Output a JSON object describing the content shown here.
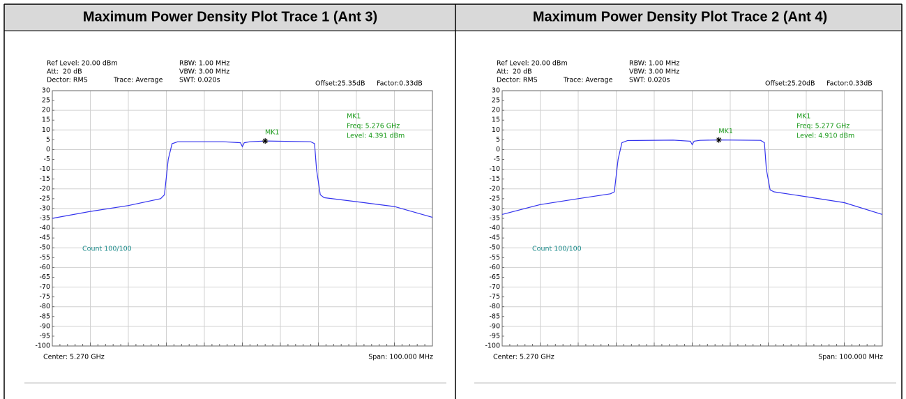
{
  "chart_data": [
    {
      "type": "line",
      "title": "Maximum Power Density Plot Trace 1 (Ant 3)",
      "ref_level": "Ref Level: 20.00 dBm",
      "att": "Att:",
      "att_value": "20 dB",
      "detector": "Dector: RMS",
      "rbw": "RBW: 1.00 MHz",
      "vbw": "VBW: 3.00 MHz",
      "trace": "Trace: Average",
      "swt": "SWT: 0.020s",
      "offset": "Offset:25.35dB",
      "factor": "Factor:0.33dB",
      "marker_info": [
        "MK1",
        "Freq: 5.276 GHz",
        "Level: 4.391 dBm"
      ],
      "count": "Count 100/100",
      "center": "Center: 5.270 GHz",
      "span": "Span: 100.000 MHz",
      "xlim": [
        5.22,
        5.32
      ],
      "ylim": [
        -100,
        30
      ],
      "yticks": [
        -100,
        -95,
        -90,
        -85,
        -80,
        -75,
        -70,
        -65,
        -60,
        -55,
        -50,
        -45,
        -40,
        -35,
        -30,
        -25,
        -20,
        -15,
        -10,
        -5,
        0,
        5,
        10,
        15,
        20,
        25,
        30
      ],
      "grid": true,
      "x": [
        5.22,
        5.23,
        5.24,
        5.2485,
        5.2495,
        5.2505,
        5.2515,
        5.253,
        5.265,
        5.2695,
        5.27,
        5.2705,
        5.272,
        5.276,
        5.288,
        5.289,
        5.2895,
        5.2905,
        5.2915,
        5.3,
        5.31,
        5.32
      ],
      "series": [
        {
          "color": "#3333ee",
          "values": [
            -35,
            -31.5,
            -28.5,
            -25,
            -23,
            -5,
            3,
            4,
            4,
            3.5,
            1.5,
            3.5,
            4,
            4.391,
            4,
            3,
            -10,
            -23,
            -24.5,
            -26.5,
            -29,
            -34.5
          ]
        }
      ],
      "marker": {
        "label": "MK1",
        "x": 5.276,
        "y": 4.391
      }
    },
    {
      "type": "line",
      "title": "Maximum Power Density Plot Trace 2 (Ant 4)",
      "ref_level": "Ref Level: 20.00 dBm",
      "att": "Att:",
      "att_value": "20 dB",
      "detector": "Dector: RMS",
      "rbw": "RBW: 1.00 MHz",
      "vbw": "VBW: 3.00 MHz",
      "trace": "Trace: Average",
      "swt": "SWT: 0.020s",
      "offset": "Offset:25.20dB",
      "factor": "Factor:0.33dB",
      "marker_info": [
        "MK1",
        "Freq: 5.277 GHz",
        "Level: 4.910 dBm"
      ],
      "count": "Count 100/100",
      "center": "Center: 5.270 GHz",
      "span": "Span: 100.000 MHz",
      "xlim": [
        5.22,
        5.32
      ],
      "ylim": [
        -100,
        30
      ],
      "yticks": [
        -100,
        -95,
        -90,
        -85,
        -80,
        -75,
        -70,
        -65,
        -60,
        -55,
        -50,
        -45,
        -40,
        -35,
        -30,
        -25,
        -20,
        -15,
        -10,
        -5,
        0,
        5,
        10,
        15,
        20,
        25,
        30
      ],
      "grid": true,
      "x": [
        5.22,
        5.23,
        5.24,
        5.2485,
        5.2495,
        5.2505,
        5.2515,
        5.253,
        5.265,
        5.2695,
        5.27,
        5.2705,
        5.272,
        5.277,
        5.288,
        5.289,
        5.2895,
        5.2905,
        5.2915,
        5.3,
        5.31,
        5.32
      ],
      "series": [
        {
          "color": "#3333ee",
          "values": [
            -33,
            -28,
            -25,
            -22.5,
            -21.5,
            -5,
            3.5,
            4.6,
            4.8,
            4.3,
            2.5,
            4.3,
            4.7,
            4.91,
            4.7,
            3.5,
            -10,
            -20.5,
            -21.5,
            -24,
            -27,
            -33
          ]
        }
      ],
      "marker": {
        "label": "MK1",
        "x": 5.277,
        "y": 4.91
      }
    }
  ]
}
